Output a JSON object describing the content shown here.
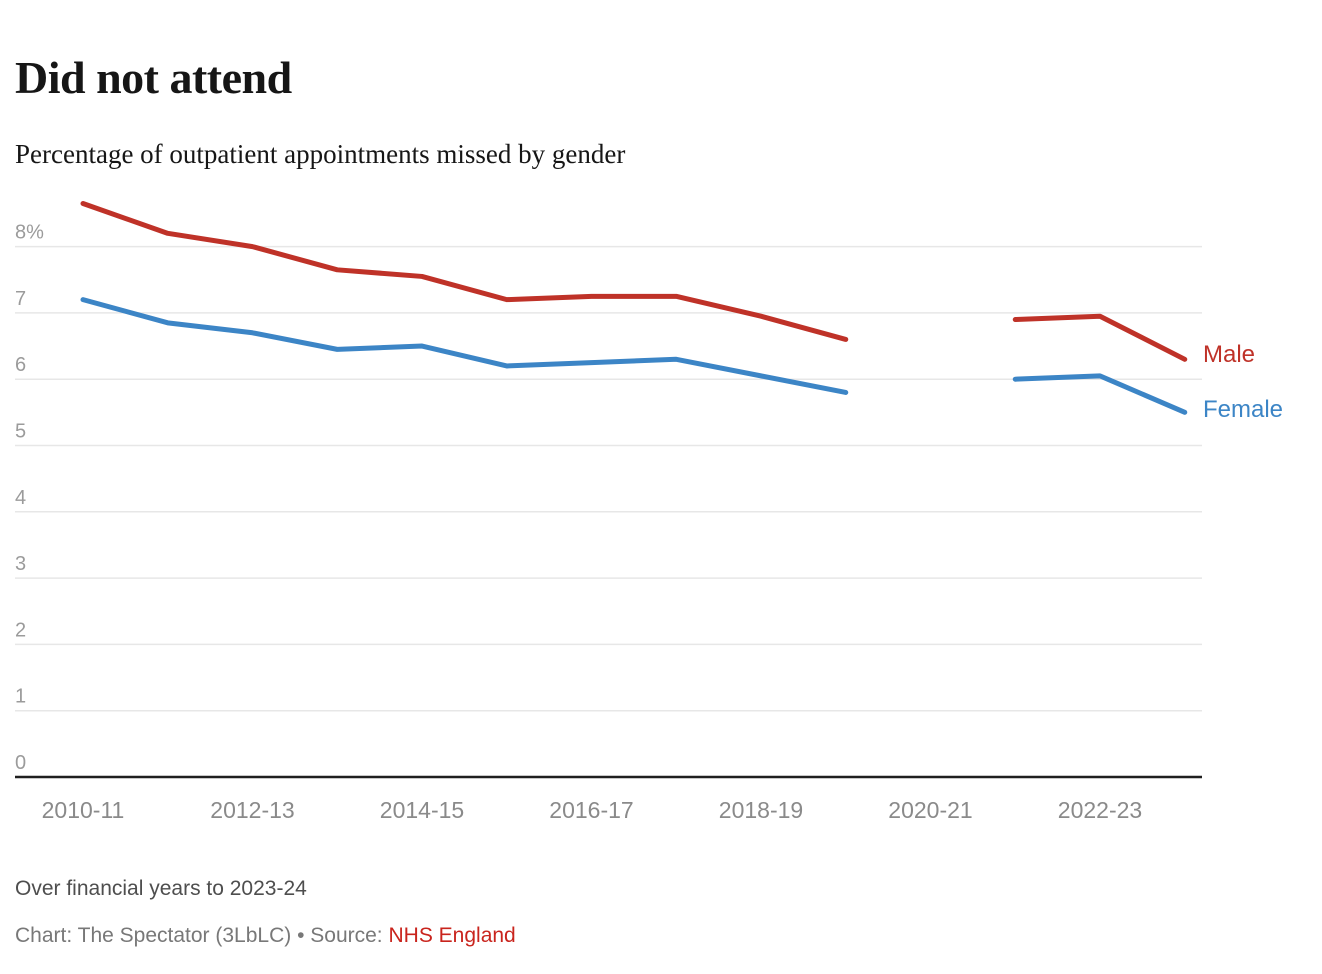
{
  "header": {
    "title": "Did not attend",
    "subtitle": "Percentage of outpatient appointments missed by gender"
  },
  "chart_data": {
    "type": "line",
    "x": [
      "2010-11",
      "2011-12",
      "2012-13",
      "2013-14",
      "2014-15",
      "2015-16",
      "2016-17",
      "2017-18",
      "2018-19",
      "2019-20",
      "2020-21",
      "2021-22",
      "2022-23",
      "2023-24"
    ],
    "series": [
      {
        "name": "Male",
        "color": "#bf3228",
        "values": [
          8.65,
          8.2,
          8.0,
          7.65,
          7.55,
          7.2,
          7.25,
          7.25,
          6.95,
          6.6,
          null,
          6.9,
          6.95,
          6.3
        ]
      },
      {
        "name": "Female",
        "color": "#3c85c6",
        "values": [
          7.2,
          6.85,
          6.7,
          6.45,
          6.5,
          6.2,
          6.25,
          6.3,
          6.05,
          5.8,
          null,
          6.0,
          6.05,
          5.5
        ]
      }
    ],
    "title": "Did not attend",
    "xlabel": "",
    "ylabel": "",
    "ylim": [
      0,
      8.8
    ],
    "yticks": [
      0,
      1,
      2,
      3,
      4,
      5,
      6,
      7,
      8
    ],
    "ytick_labels": [
      "0",
      "1",
      "2",
      "3",
      "4",
      "5",
      "6",
      "7",
      "8%"
    ],
    "xtick_labels": [
      "2010-11",
      "2012-13",
      "2014-15",
      "2016-17",
      "2018-19",
      "2020-21",
      "2022-23"
    ],
    "grid": "horizontal",
    "legend_position": "line-end-labels",
    "note": "Data gap at 2020-21"
  },
  "footer": {
    "note": "Over financial years to 2023-24",
    "credit_prefix": "Chart: The Spectator (3LbLC) • Source: ",
    "source_label": "NHS England"
  },
  "colors": {
    "male": "#bf3228",
    "female": "#3c85c6",
    "grid": "#e7e7e7",
    "baseline": "#1f1f1f",
    "y_tick_text": "#9b9b9b",
    "x_tick_text": "#8a8a8a",
    "source_link": "#c9241d"
  }
}
